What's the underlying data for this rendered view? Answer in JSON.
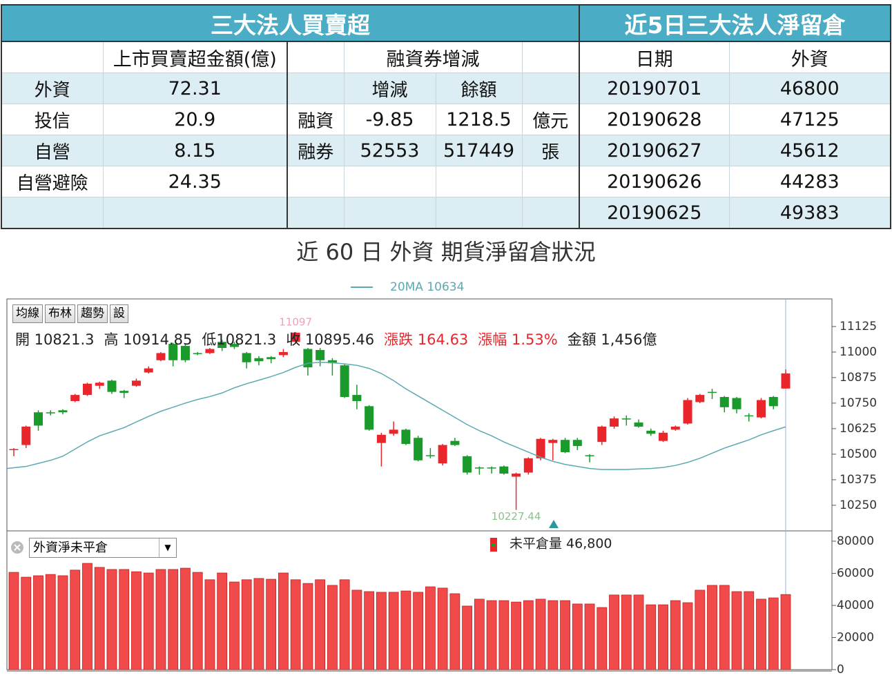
{
  "left_table": {
    "title": "三大法人買賣超",
    "amount_header": "上市買賣超金額(億)",
    "margin_header": "融資券增減",
    "margin_columns": [
      "增減",
      "餘額"
    ],
    "institutions": [
      {
        "name": "外資",
        "amount": 72.31
      },
      {
        "name": "投信",
        "amount": 20.9
      },
      {
        "name": "自營",
        "amount": 8.15
      },
      {
        "name": "自營避險",
        "amount": 24.35
      }
    ],
    "margin_rows": [
      {
        "name": "融資",
        "change": -9.85,
        "balance": 1218.5,
        "unit": "億元"
      },
      {
        "name": "融券",
        "change": 52553,
        "balance": 517449,
        "unit": "張"
      }
    ]
  },
  "right_table": {
    "title": "近5日三大法人淨留倉",
    "columns": [
      "日期",
      "外資"
    ],
    "rows": [
      [
        "20190701",
        46800
      ],
      [
        "20190628",
        47125
      ],
      [
        "20190627",
        45612
      ],
      [
        "20190626",
        44283
      ],
      [
        "20190625",
        49383
      ]
    ]
  },
  "heading": "近 60 日 外資 期貨淨留倉狀況",
  "toolbar": [
    "均線",
    "布林",
    "趨勢",
    "設"
  ],
  "info": [
    {
      "text": "開 10821.3",
      "color": "#222222"
    },
    {
      "text": "高 10914.85",
      "color": "#222222"
    },
    {
      "text": "低10821.3",
      "color": "#222222"
    },
    {
      "text": "收 10895.46",
      "color": "#222222"
    },
    {
      "text": "漲跌 164.63",
      "color": "#e8262b"
    },
    {
      "text": "漲幅 1.53%",
      "color": "#e8262b"
    },
    {
      "text": "金額 1,456億",
      "color": "#222222"
    }
  ],
  "dropdown": "外資淨未平倉",
  "chart_data": [
    {
      "type": "candlestick",
      "legend": "20MA 10634",
      "up_color": "#e8262b",
      "down_color": "#1a9a2a",
      "annotations": [
        {
          "text": "11097",
          "index": 23,
          "color": "#f2a0b4"
        },
        {
          "text": "10227.44",
          "index": 41,
          "color": "#8cc090"
        }
      ],
      "open": [
        10520,
        10545,
        10705,
        10705,
        10715,
        10760,
        10790,
        10835,
        10860,
        10810,
        10835,
        10900,
        10960,
        11040,
        11030,
        10995,
        10995,
        11050,
        11040,
        10995,
        10970,
        10975,
        10985,
        11050,
        11015,
        11010,
        10960,
        10935,
        10790,
        10735,
        10555,
        10600,
        10620,
        10580,
        10495,
        10455,
        10565,
        10490,
        10435,
        10435,
        10440,
        10390,
        10410,
        10480,
        10555,
        10570,
        10570,
        10495,
        10560,
        10635,
        10675,
        10655,
        10615,
        10565,
        10620,
        10650,
        10755,
        10805,
        10780,
        10775,
        10690,
        10680,
        10780,
        10821.3
      ],
      "close": [
        10525,
        10635,
        10640,
        10700,
        10705,
        10790,
        10845,
        10850,
        10805,
        10800,
        10860,
        10920,
        10995,
        10960,
        10960,
        10990,
        11015,
        11020,
        11025,
        10950,
        10955,
        10965,
        11000,
        11095,
        10925,
        10960,
        10945,
        10780,
        10760,
        10620,
        10595,
        10620,
        10550,
        10470,
        10490,
        10545,
        10545,
        10410,
        10430,
        10430,
        10405,
        10405,
        10480,
        10575,
        10570,
        10510,
        10540,
        10490,
        10635,
        10675,
        10670,
        10635,
        10600,
        10605,
        10635,
        10765,
        10790,
        10800,
        10730,
        10720,
        10685,
        10765,
        10735,
        10895.46
      ],
      "high": [
        10530,
        10640,
        10715,
        10715,
        10720,
        10795,
        10850,
        10855,
        10865,
        10815,
        10870,
        10930,
        11000,
        11045,
        11040,
        11000,
        11020,
        11060,
        11050,
        11000,
        10980,
        10980,
        11015,
        11097,
        11020,
        11020,
        10970,
        10940,
        10840,
        10740,
        10605,
        10660,
        10625,
        10590,
        10530,
        10550,
        10580,
        10495,
        10440,
        10440,
        10445,
        10410,
        10485,
        10580,
        10575,
        10580,
        10580,
        10500,
        10640,
        10685,
        10690,
        10670,
        10625,
        10615,
        10640,
        10775,
        10795,
        10820,
        10785,
        10780,
        10700,
        10775,
        10785,
        10914.85
      ],
      "low": [
        10490,
        10530,
        10615,
        10690,
        10695,
        10755,
        10785,
        10820,
        10795,
        10775,
        10830,
        10895,
        10955,
        10930,
        10950,
        10985,
        10990,
        11005,
        11015,
        10920,
        10935,
        10945,
        10975,
        11040,
        10885,
        10930,
        10885,
        10775,
        10720,
        10615,
        10440,
        10590,
        10545,
        10465,
        10480,
        10445,
        10540,
        10400,
        10400,
        10405,
        10400,
        10227.44,
        10400,
        10470,
        10470,
        10505,
        10520,
        10460,
        10545,
        10625,
        10640,
        10630,
        10590,
        10560,
        10615,
        10645,
        10750,
        10770,
        10705,
        10700,
        10660,
        10675,
        10720,
        10821.3
      ],
      "series": [
        {
          "name": "20MA",
          "color": "#5aaab2",
          "values": [
            10430,
            10440,
            10455,
            10470,
            10490,
            10525,
            10560,
            10590,
            10610,
            10630,
            10658,
            10685,
            10710,
            10730,
            10750,
            10768,
            10782,
            10800,
            10825,
            10845,
            10862,
            10880,
            10900,
            10925,
            10945,
            10950,
            10948,
            10942,
            10935,
            10920,
            10895,
            10860,
            10820,
            10785,
            10750,
            10715,
            10680,
            10645,
            10615,
            10590,
            10560,
            10535,
            10510,
            10485,
            10465,
            10450,
            10440,
            10430,
            10425,
            10425,
            10425,
            10428,
            10430,
            10435,
            10445,
            10460,
            10480,
            10505,
            10530,
            10550,
            10570,
            10595,
            10615,
            10634
          ]
        }
      ],
      "ylim": [
        10128,
        11260
      ],
      "yticks": [
        10250,
        10375,
        10500,
        10625,
        10750,
        10875,
        11000,
        11125
      ]
    },
    {
      "type": "bar",
      "legend": "未平倉量 46,800",
      "color": "#f04a4a",
      "values": [
        60600,
        57600,
        58500,
        59300,
        58500,
        62000,
        66200,
        63700,
        62400,
        62400,
        61000,
        60200,
        62400,
        62400,
        63200,
        60600,
        56000,
        60200,
        54600,
        56000,
        56800,
        56300,
        60200,
        56000,
        53700,
        56000,
        52500,
        56000,
        49500,
        48600,
        48200,
        48200,
        49000,
        48200,
        51600,
        50800,
        47300,
        39600,
        43900,
        43000,
        43000,
        42100,
        43000,
        43900,
        43000,
        43000,
        40900,
        40900,
        38700,
        46500,
        46500,
        46500,
        40400,
        40400,
        43000,
        41700,
        49500,
        52500,
        52500,
        48600,
        48600,
        43900,
        44700,
        46800
      ],
      "ylim": [
        0,
        86000
      ],
      "yticks": [
        0,
        20000,
        40000,
        60000,
        80000
      ]
    }
  ]
}
